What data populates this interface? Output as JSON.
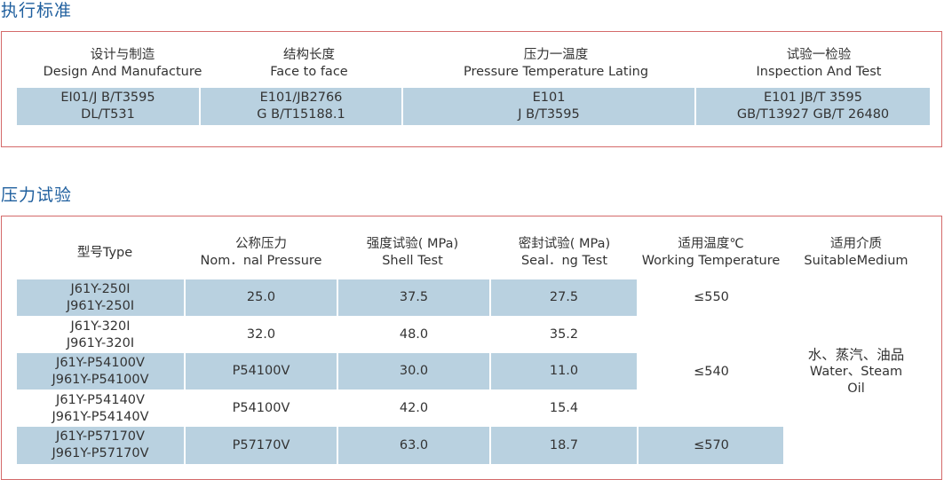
{
  "standards": {
    "title": "执行标准",
    "headers": [
      {
        "zh": "设计与制造",
        "en": "Design And Manufacture"
      },
      {
        "zh": "结构长度",
        "en": "Face to face"
      },
      {
        "zh": "压力一温度",
        "en": "Pressure Temperature Lating"
      },
      {
        "zh": "试验一检验",
        "en": "Inspection And Test"
      }
    ],
    "values": [
      [
        "EI01/J B/T3595",
        "DL/T531"
      ],
      [
        "E101/JB2766",
        "G B/T15188.1"
      ],
      [
        "E101",
        "J B/T3595"
      ],
      [
        "E101  JB/T 3595",
        "GB/T13927 GB/T 26480"
      ]
    ]
  },
  "pressure_test": {
    "title": "压力试验",
    "headers": [
      {
        "zh": "型号Type",
        "en": ""
      },
      {
        "zh": "公称压力",
        "en": "Nom．nal Pressure"
      },
      {
        "zh": "强度试验( MPa)",
        "en": "Shell Test"
      },
      {
        "zh": "密封试验( MPa)",
        "en": "Seal．ng Test"
      },
      {
        "zh": "适用温度℃",
        "en": "Working Temperature"
      },
      {
        "zh": "适用介质",
        "en": "SuitableMedium"
      }
    ],
    "rows": [
      {
        "type": [
          "J61Y-250I",
          "J961Y-250I"
        ],
        "nominal": "25.0",
        "shell": "37.5",
        "seal": "27.5"
      },
      {
        "type": [
          "J61Y-320I",
          "J961Y-320I"
        ],
        "nominal": "32.0",
        "shell": "48.0",
        "seal": "35.2"
      },
      {
        "type": [
          "J61Y-P54100V",
          "J961Y-P54100V"
        ],
        "nominal": "P54100V",
        "shell": "30.0",
        "seal": "11.0"
      },
      {
        "type": [
          "J61Y-P54140V",
          "J961Y-P54140V"
        ],
        "nominal": "P54100V",
        "shell": "42.0",
        "seal": "15.4"
      },
      {
        "type": [
          "J61Y-P57170V",
          "J961Y-P57170V"
        ],
        "nominal": "P57170V",
        "shell": "63.0",
        "seal": "18.7"
      }
    ],
    "temperatures": [
      "≤550",
      "≤540",
      "≤570"
    ],
    "medium": [
      "水、蒸汽、油品",
      "Water、Steam",
      "Oil"
    ]
  }
}
